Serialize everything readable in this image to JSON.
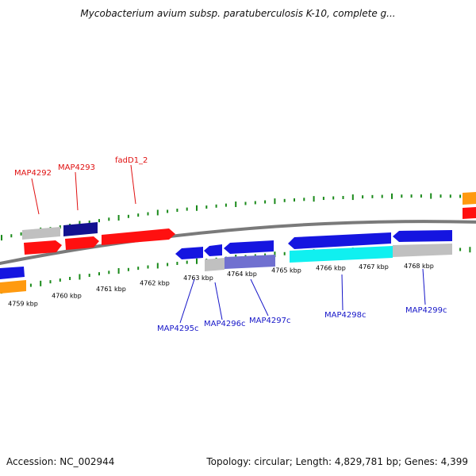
{
  "header": {
    "title": "Mycobacterium avium subsp. paratuberculosis K-10, complete g..."
  },
  "footer": {
    "accession": "Accession: NC_002944",
    "stats": "Topology: circular; Length: 4,829,781 bp; Genes: 4,399"
  },
  "colors": {
    "backbone": "#7a7a7a",
    "tick": "#1a8a1a",
    "gene_red": "#ff1010",
    "gene_blue": "#1515e0",
    "gene_gray": "#c0c0c0",
    "gene_orange": "#ff9a10",
    "gene_cyan": "#10f0f0",
    "gene_purple": "#7070d0",
    "gene_navy": "#121290",
    "label_forward": "#e01010",
    "label_reverse": "#1515c8"
  },
  "ruler": {
    "unit": "kbp",
    "ticks": [
      "4759 kbp",
      "4760 kbp",
      "4761 kbp",
      "4762 kbp",
      "4763 kbp",
      "4764 kbp",
      "4765 kbp",
      "4766 kbp",
      "4767 kbp",
      "4768 kbp"
    ]
  },
  "gene_labels": [
    {
      "name": "MAP4292",
      "strand": "forward"
    },
    {
      "name": "MAP4293",
      "strand": "forward"
    },
    {
      "name": "fadD1_2",
      "strand": "forward"
    },
    {
      "name": "MAP4295c",
      "strand": "reverse"
    },
    {
      "name": "MAP4296c",
      "strand": "reverse"
    },
    {
      "name": "MAP4297c",
      "strand": "reverse"
    },
    {
      "name": "MAP4298c",
      "strand": "reverse"
    },
    {
      "name": "MAP4299c",
      "strand": "reverse"
    }
  ]
}
